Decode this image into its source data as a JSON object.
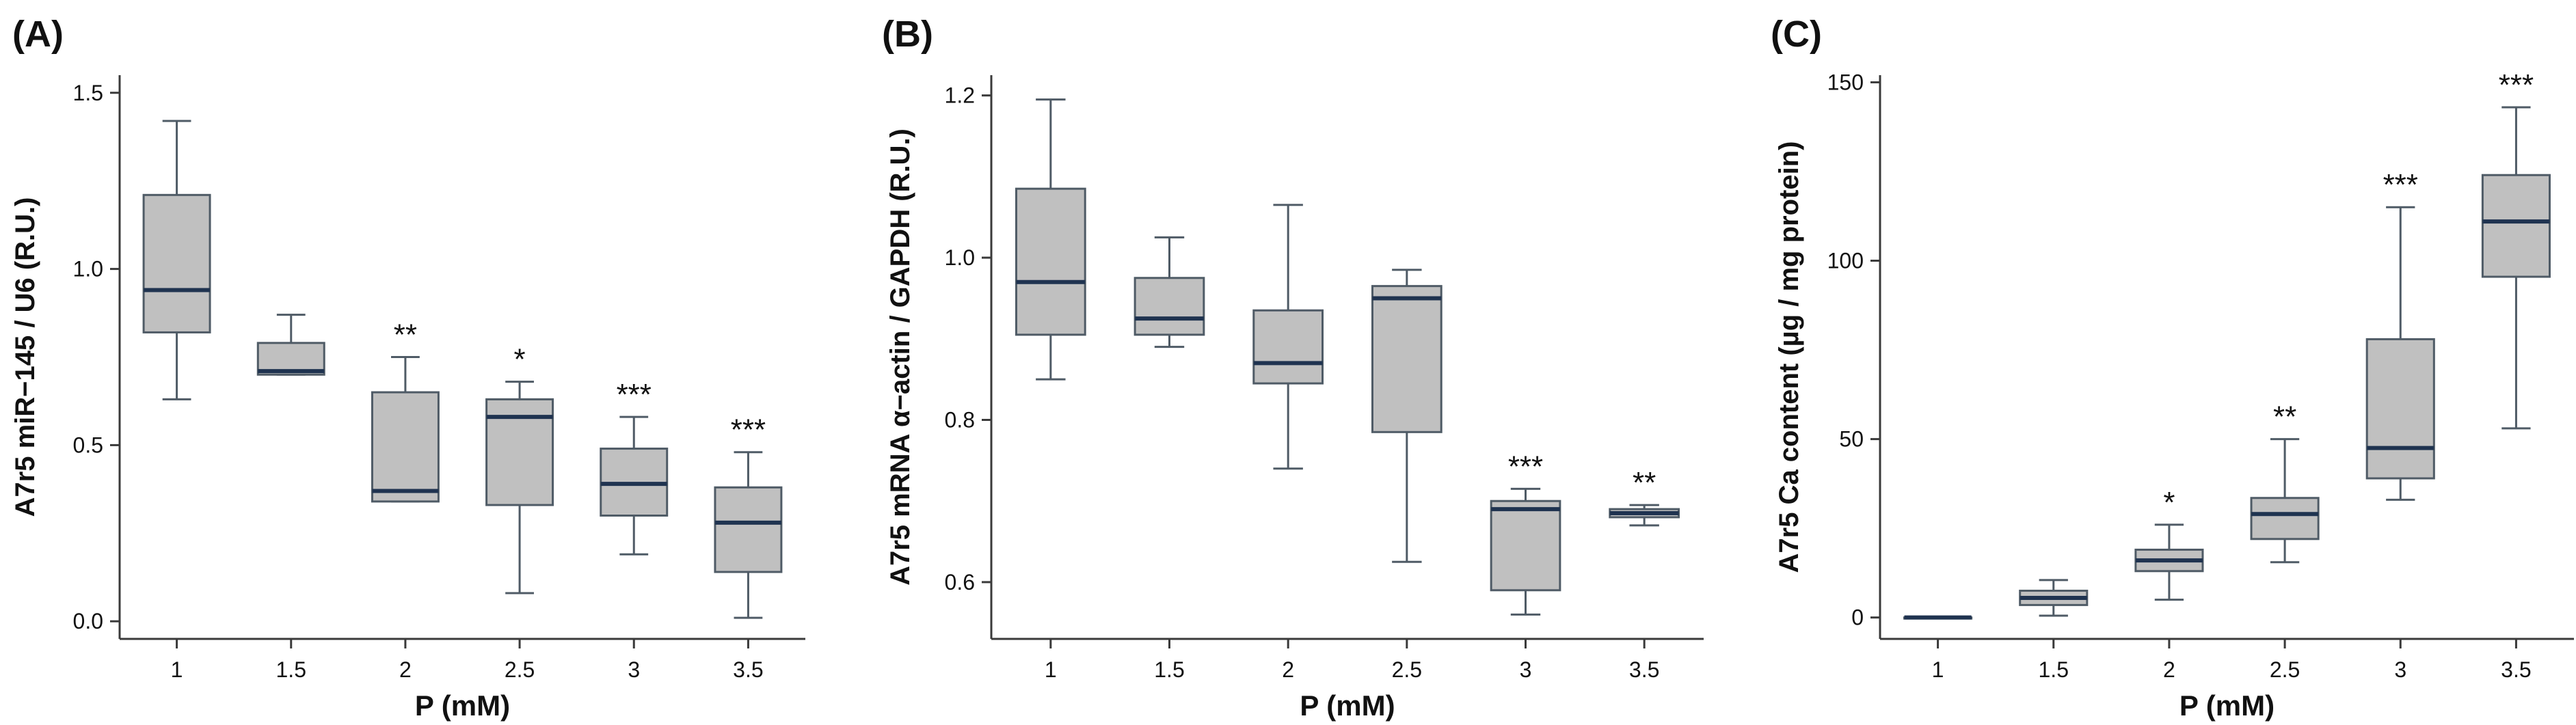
{
  "style": {
    "box_fill": "#c0c0c0",
    "box_stroke": "#4f5b66",
    "median_color": "#1f3350",
    "axis_color": "#3a3a3a",
    "text_color": "#111111"
  },
  "chart_data": [
    {
      "panel_label": "(A)",
      "type": "box",
      "xlabel": "P (mM)",
      "ylabel": "A7r5 miR−145 / U6 (R.U.)",
      "categories": [
        "1",
        "1.5",
        "2",
        "2.5",
        "3",
        "3.5"
      ],
      "ylim": [
        -0.05,
        1.55
      ],
      "yticks": [
        0.0,
        0.5,
        1.0,
        1.5
      ],
      "ytick_labels": [
        "0.0",
        "0.5",
        "1.0",
        "1.5"
      ],
      "boxes": [
        {
          "min": 0.63,
          "q1": 0.82,
          "median": 0.94,
          "q3": 1.21,
          "max": 1.42,
          "sig": ""
        },
        {
          "min": 0.7,
          "q1": 0.7,
          "median": 0.71,
          "q3": 0.79,
          "max": 0.87,
          "sig": ""
        },
        {
          "min": 0.34,
          "q1": 0.34,
          "median": 0.37,
          "q3": 0.65,
          "max": 0.75,
          "sig": "**"
        },
        {
          "min": 0.08,
          "q1": 0.33,
          "median": 0.58,
          "q3": 0.63,
          "max": 0.68,
          "sig": "*"
        },
        {
          "min": 0.19,
          "q1": 0.3,
          "median": 0.39,
          "q3": 0.49,
          "max": 0.58,
          "sig": "***"
        },
        {
          "min": 0.01,
          "q1": 0.14,
          "median": 0.28,
          "q3": 0.38,
          "max": 0.48,
          "sig": "***"
        }
      ]
    },
    {
      "panel_label": "(B)",
      "type": "box",
      "xlabel": "P (mM)",
      "ylabel": "A7r5 mRNA  α−actin / GAPDH (R.U.)",
      "categories": [
        "1",
        "1.5",
        "2",
        "2.5",
        "3",
        "3.5"
      ],
      "ylim": [
        0.53,
        1.225
      ],
      "yticks": [
        0.6,
        0.8,
        1.0,
        1.2
      ],
      "ytick_labels": [
        "0.6",
        "0.8",
        "1.0",
        "1.2"
      ],
      "boxes": [
        {
          "min": 0.85,
          "q1": 0.905,
          "median": 0.97,
          "q3": 1.085,
          "max": 1.195,
          "sig": ""
        },
        {
          "min": 0.89,
          "q1": 0.905,
          "median": 0.925,
          "q3": 0.975,
          "max": 1.025,
          "sig": ""
        },
        {
          "min": 0.74,
          "q1": 0.845,
          "median": 0.87,
          "q3": 0.935,
          "max": 1.065,
          "sig": ""
        },
        {
          "min": 0.625,
          "q1": 0.785,
          "median": 0.95,
          "q3": 0.965,
          "max": 0.985,
          "sig": ""
        },
        {
          "min": 0.56,
          "q1": 0.59,
          "median": 0.69,
          "q3": 0.7,
          "max": 0.715,
          "sig": "***"
        },
        {
          "min": 0.67,
          "q1": 0.68,
          "median": 0.685,
          "q3": 0.69,
          "max": 0.695,
          "sig": "**"
        }
      ]
    },
    {
      "panel_label": "(C)",
      "type": "box",
      "xlabel": "P (mM)",
      "ylabel": "A7r5 Ca content (µg / mg protein)",
      "categories": [
        "1",
        "1.5",
        "2",
        "2.5",
        "3",
        "3.5"
      ],
      "ylim": [
        -6,
        152
      ],
      "yticks": [
        0,
        50,
        100,
        150
      ],
      "ytick_labels": [
        "0",
        "50",
        "100",
        "150"
      ],
      "boxes": [
        {
          "min": 0,
          "q1": 0,
          "median": 0,
          "q3": 0,
          "max": 0,
          "sig": ""
        },
        {
          "min": 0.5,
          "q1": 3.5,
          "median": 5.5,
          "q3": 7.5,
          "max": 10.5,
          "sig": ""
        },
        {
          "min": 5,
          "q1": 13,
          "median": 16,
          "q3": 19,
          "max": 26,
          "sig": "*"
        },
        {
          "min": 15.5,
          "q1": 22,
          "median": 29,
          "q3": 33.5,
          "max": 50,
          "sig": "**"
        },
        {
          "min": 33,
          "q1": 39,
          "median": 47.5,
          "q3": 78,
          "max": 115,
          "sig": "***"
        },
        {
          "min": 53,
          "q1": 95.5,
          "median": 111,
          "q3": 124,
          "max": 143,
          "sig": "***"
        }
      ]
    }
  ]
}
